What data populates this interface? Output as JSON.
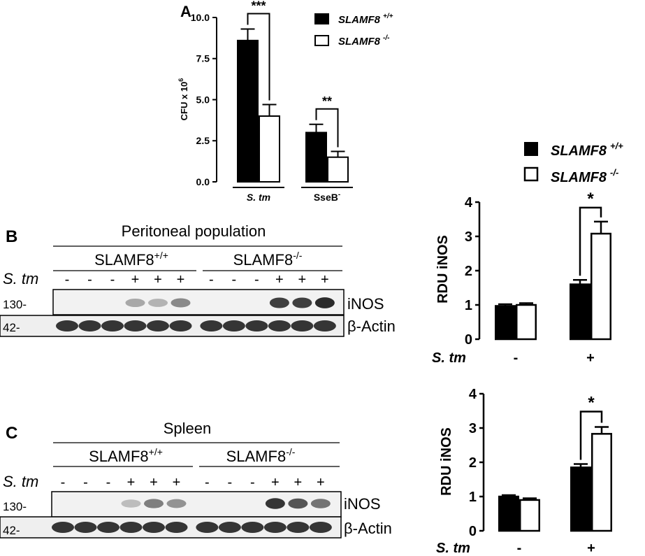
{
  "colors": {
    "ink": "#000000",
    "wt_fill": "#000000",
    "ko_fill": "#ffffff",
    "band": "#202020",
    "blot_bg": "#f2f2f2"
  },
  "panel_A": {
    "letter": "A"
  },
  "panel_B": {
    "letter": "B",
    "population": "Peritoneal population",
    "group_wt": "SLAMF8",
    "group_wt_sup": "+/+",
    "group_ko": "SLAMF8",
    "group_ko_sup": "-/-",
    "treatment_label": "S. tm",
    "lane_signs": [
      "-",
      "-",
      "-",
      "+",
      "+",
      "+",
      "-",
      "-",
      "-",
      "+",
      "+",
      "+"
    ],
    "mw_inos": "130-",
    "mw_actin": "42-",
    "band_inos": "iNOS",
    "band_actin": "β-Actin",
    "inos_intensity": [
      0,
      0,
      0,
      0.35,
      0.3,
      0.5,
      0,
      0,
      0,
      0.85,
      0.85,
      0.95
    ],
    "actin_intensity": [
      1,
      1,
      1,
      1,
      1,
      1,
      1,
      1,
      1,
      1,
      1,
      1
    ]
  },
  "panel_C": {
    "letter": "C",
    "population": "Spleen",
    "group_wt": "SLAMF8",
    "group_wt_sup": "+/+",
    "group_ko": "SLAMF8",
    "group_ko_sup": "-/-",
    "treatment_label": "S. tm",
    "lane_signs": [
      "-",
      "-",
      "-",
      "+",
      "+",
      "+",
      "-",
      "-",
      "-",
      "+",
      "+",
      "+"
    ],
    "mw_inos": "130-",
    "mw_actin": "42-",
    "band_inos": "iNOS",
    "band_actin": "β-Actin",
    "inos_intensity": [
      0,
      0,
      0,
      0.25,
      0.55,
      0.45,
      0,
      0,
      0,
      0.9,
      0.75,
      0.6
    ],
    "actin_intensity": [
      1,
      1,
      1,
      1,
      1,
      1,
      1,
      1,
      1,
      1,
      1,
      1
    ]
  },
  "legend_right": {
    "wt": "SLAMF8",
    "wt_sup": "+/+",
    "ko": "SLAMF8",
    "ko_sup": "-/-"
  },
  "chart_data": [
    {
      "type": "bar",
      "panel": "A",
      "ylabel": "CFU x 10",
      "ylabel_sup": "6",
      "ylim": [
        0,
        10
      ],
      "yticks": [
        "0.0",
        "2.5",
        "5.0",
        "7.5",
        "10.0"
      ],
      "categories": [
        "S. tm",
        "SseB"
      ],
      "category_sups": [
        "",
        "-"
      ],
      "category_italic": [
        true,
        false
      ],
      "series": [
        {
          "name": "SLAMF8",
          "name_sup": "+/+",
          "values": [
            8.6,
            3.0
          ],
          "errors": [
            0.7,
            0.5
          ]
        },
        {
          "name": "SLAMF8",
          "name_sup": "-/-",
          "values": [
            4.0,
            1.5
          ],
          "errors": [
            0.7,
            0.35
          ]
        }
      ],
      "significance": [
        "***",
        "**"
      ],
      "legend": "top-right"
    },
    {
      "type": "bar",
      "panel": "B",
      "ylabel": "RDU iNOS",
      "ylim": [
        0,
        4
      ],
      "yticks": [
        "0",
        "1",
        "2",
        "3",
        "4"
      ],
      "xaxis_label": "S. tm",
      "categories": [
        "-",
        "+"
      ],
      "series": [
        {
          "name": "SLAMF8",
          "name_sup": "+/+",
          "values": [
            0.97,
            1.6
          ],
          "errors": [
            0.05,
            0.13
          ]
        },
        {
          "name": "SLAMF8",
          "name_sup": "-/-",
          "values": [
            1.0,
            3.08
          ],
          "errors": [
            0.05,
            0.35
          ]
        }
      ],
      "significance": [
        "",
        "*"
      ]
    },
    {
      "type": "bar",
      "panel": "C",
      "ylabel": "RDU iNOS",
      "ylim": [
        0,
        4
      ],
      "yticks": [
        "0",
        "1",
        "2",
        "3",
        "4"
      ],
      "xaxis_label": "S. tm",
      "categories": [
        "-",
        "+"
      ],
      "series": [
        {
          "name": "SLAMF8",
          "name_sup": "+/+",
          "values": [
            1.0,
            1.85
          ],
          "errors": [
            0.04,
            0.1
          ]
        },
        {
          "name": "SLAMF8",
          "name_sup": "-/-",
          "values": [
            0.9,
            2.83
          ],
          "errors": [
            0.05,
            0.2
          ]
        }
      ],
      "significance": [
        "",
        "*"
      ]
    }
  ]
}
